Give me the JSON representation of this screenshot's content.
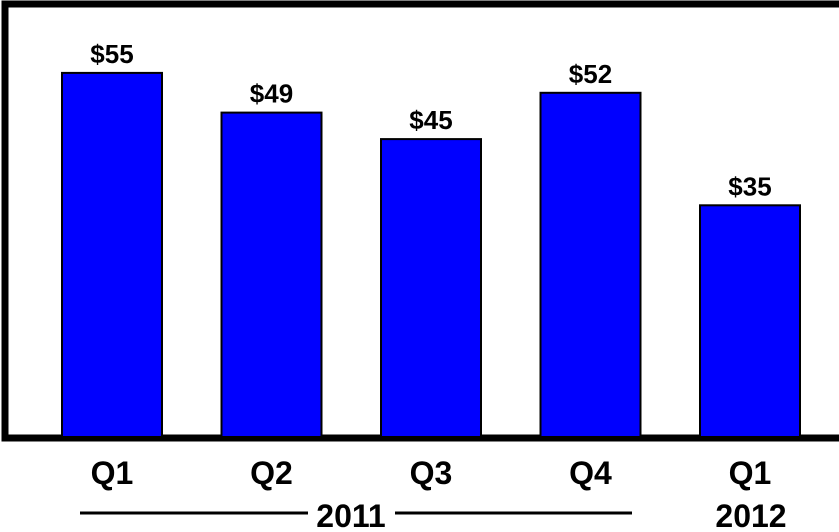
{
  "chart_data": {
    "type": "bar",
    "categories": [
      "Q1",
      "Q2",
      "Q3",
      "Q4",
      "Q1"
    ],
    "values": [
      55,
      49,
      45,
      52,
      35
    ],
    "value_labels": [
      "$55",
      "$49",
      "$45",
      "$52",
      "$35"
    ],
    "groups": [
      {
        "label": "2011",
        "categories": [
          0,
          1,
          2,
          3
        ]
      },
      {
        "label": "2012",
        "categories": [
          4
        ]
      }
    ],
    "ylim": [
      0,
      65
    ],
    "grid": false,
    "bar_color": "#0000FF",
    "title": "",
    "xlabel": "",
    "ylabel": ""
  }
}
